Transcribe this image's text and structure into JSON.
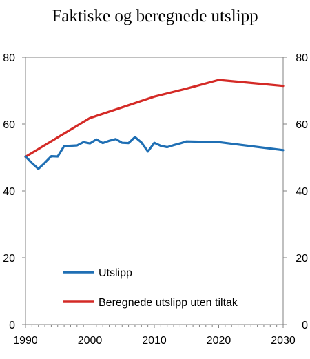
{
  "chart_data": {
    "type": "line",
    "title": "Faktiske og beregnede utslipp",
    "xlim": [
      1990,
      2030
    ],
    "ylim": [
      0,
      80
    ],
    "x_ticks": [
      1990,
      2000,
      2010,
      2020,
      2030
    ],
    "y_ticks": [
      0,
      20,
      40,
      60,
      80
    ],
    "secondary_y_axis": true,
    "grid": false,
    "legend_position": "bottom-left inside plot",
    "series": [
      {
        "name": "Utslipp",
        "color": "#1f6fb4",
        "points": [
          [
            1990,
            50.3
          ],
          [
            1991,
            48.3
          ],
          [
            1992,
            46.6
          ],
          [
            1993,
            48.4
          ],
          [
            1994,
            50.4
          ],
          [
            1995,
            50.3
          ],
          [
            1996,
            53.4
          ],
          [
            1997,
            53.5
          ],
          [
            1998,
            53.6
          ],
          [
            1999,
            54.6
          ],
          [
            2000,
            54.2
          ],
          [
            2001,
            55.4
          ],
          [
            2002,
            54.3
          ],
          [
            2003,
            55.0
          ],
          [
            2004,
            55.5
          ],
          [
            2005,
            54.4
          ],
          [
            2006,
            54.3
          ],
          [
            2007,
            56.1
          ],
          [
            2008,
            54.5
          ],
          [
            2009,
            51.8
          ],
          [
            2010,
            54.4
          ],
          [
            2011,
            53.5
          ],
          [
            2012,
            53.1
          ],
          [
            2013,
            53.7
          ],
          [
            2014,
            54.2
          ],
          [
            2015,
            54.8
          ],
          [
            2020,
            54.6
          ],
          [
            2030,
            52.2
          ]
        ]
      },
      {
        "name": "Beregnede utslipp uten tiltak",
        "color": "#d42a26",
        "points": [
          [
            1990,
            50.2
          ],
          [
            2000,
            61.8
          ],
          [
            2005,
            65.0
          ],
          [
            2010,
            68.2
          ],
          [
            2015,
            70.6
          ],
          [
            2020,
            73.2
          ],
          [
            2030,
            71.4
          ]
        ]
      }
    ]
  }
}
